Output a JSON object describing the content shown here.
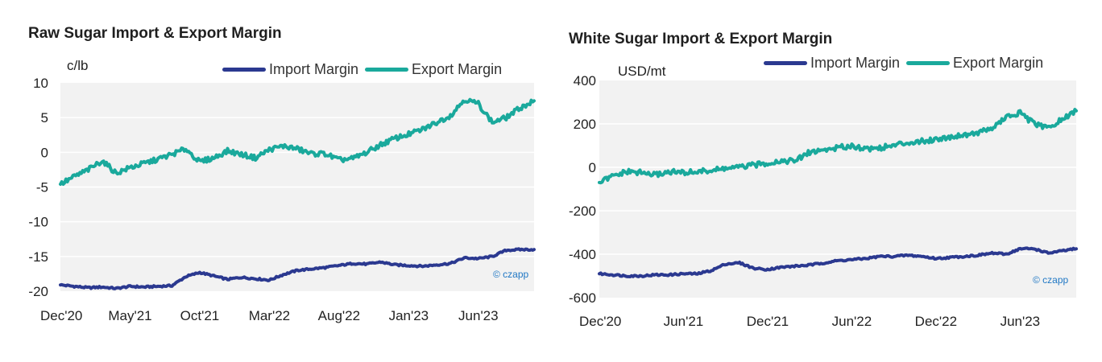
{
  "colors": {
    "import": "#2b3990",
    "export": "#1aa99c",
    "plot_bg": "#f2f2f2",
    "grid": "#ffffff",
    "watermark": "#1f77c4"
  },
  "watermark": "czapp",
  "chart_data": [
    {
      "type": "line",
      "title": "Raw Sugar Import & Export Margin",
      "ylabel": "c/lb",
      "xlabel": "",
      "ylim": [
        -20,
        10
      ],
      "yticks": [
        10,
        5,
        0,
        -5,
        -10,
        -15,
        -20
      ],
      "x_ticks": [
        "Dec'20",
        "May'21",
        "Oct'21",
        "Mar'22",
        "Aug'22",
        "Jan'23",
        "Jun'23"
      ],
      "legend": "top-right",
      "grid": true,
      "x": [
        "Dec'20",
        "Jan'21",
        "Feb'21",
        "Mar'21",
        "Apr'21",
        "May'21",
        "Jun'21",
        "Jul'21",
        "Aug'21",
        "Sep'21",
        "Oct'21",
        "Nov'21",
        "Dec'21",
        "Jan'22",
        "Feb'22",
        "Mar'22",
        "Apr'22",
        "May'22",
        "Jun'22",
        "Jul'22",
        "Aug'22",
        "Sep'22",
        "Oct'22",
        "Nov'22",
        "Dec'22",
        "Jan'23",
        "Feb'23",
        "Mar'23",
        "Apr'23",
        "May'23",
        "Jun'23",
        "Jul'23",
        "Aug'23",
        "Sep'23",
        "Oct'23"
      ],
      "series": [
        {
          "name": "Import Margin",
          "values": [
            -19.1,
            -19.3,
            -19.5,
            -19.4,
            -19.6,
            -19.3,
            -19.4,
            -19.3,
            -19.2,
            -17.9,
            -17.3,
            -17.8,
            -18.3,
            -18.0,
            -18.2,
            -18.4,
            -17.6,
            -17.0,
            -16.8,
            -16.6,
            -16.3,
            -16.0,
            -16.1,
            -15.8,
            -16.2,
            -16.3,
            -16.4,
            -16.2,
            -16.0,
            -15.2,
            -15.3,
            -15.0,
            -14.1,
            -14.0,
            -14.0
          ]
        },
        {
          "name": "Export Margin",
          "values": [
            -4.6,
            -3.5,
            -2.5,
            -1.2,
            -3.0,
            -2.2,
            -1.6,
            -1.0,
            -0.3,
            0.5,
            -1.4,
            -0.8,
            0.2,
            -0.3,
            -0.8,
            0.4,
            0.9,
            0.5,
            -0.2,
            -0.2,
            -1.1,
            -0.9,
            0.0,
            1.1,
            2.0,
            2.6,
            3.3,
            4.3,
            5.3,
            7.6,
            7.0,
            4.3,
            5.0,
            6.4,
            7.4
          ]
        }
      ]
    },
    {
      "type": "line",
      "title": "White Sugar Import & Export Margin",
      "ylabel": "USD/mt",
      "xlabel": "",
      "ylim": [
        -600,
        400
      ],
      "yticks": [
        400,
        200,
        0,
        -200,
        -400,
        -600
      ],
      "x_ticks": [
        "Dec'20",
        "Jun'21",
        "Dec'21",
        "Jun'22",
        "Dec'22",
        "Jun'23"
      ],
      "legend": "top-right",
      "grid": true,
      "x": [
        "Dec'20",
        "Jan'21",
        "Feb'21",
        "Mar'21",
        "Apr'21",
        "May'21",
        "Jun'21",
        "Jul'21",
        "Aug'21",
        "Sep'21",
        "Oct'21",
        "Nov'21",
        "Dec'21",
        "Jan'22",
        "Feb'22",
        "Mar'22",
        "Apr'22",
        "May'22",
        "Jun'22",
        "Jul'22",
        "Aug'22",
        "Sep'22",
        "Oct'22",
        "Nov'22",
        "Dec'22",
        "Jan'23",
        "Feb'23",
        "Mar'23",
        "Apr'23",
        "May'23",
        "Jun'23",
        "Jul'23",
        "Aug'23",
        "Sep'23",
        "Oct'23"
      ],
      "series": [
        {
          "name": "Import Margin",
          "values": [
            -490,
            -495,
            -500,
            -500,
            -495,
            -495,
            -490,
            -490,
            -475,
            -445,
            -440,
            -465,
            -470,
            -460,
            -455,
            -450,
            -440,
            -430,
            -425,
            -420,
            -410,
            -410,
            -405,
            -410,
            -420,
            -415,
            -410,
            -405,
            -395,
            -400,
            -375,
            -375,
            -395,
            -385,
            -375
          ]
        },
        {
          "name": "Export Margin",
          "values": [
            -70,
            -40,
            -20,
            -25,
            -35,
            -20,
            -25,
            -20,
            -15,
            -5,
            0,
            10,
            20,
            30,
            30,
            70,
            80,
            90,
            100,
            85,
            90,
            100,
            115,
            120,
            130,
            140,
            150,
            160,
            180,
            230,
            250,
            200,
            180,
            220,
            260
          ]
        }
      ]
    }
  ]
}
